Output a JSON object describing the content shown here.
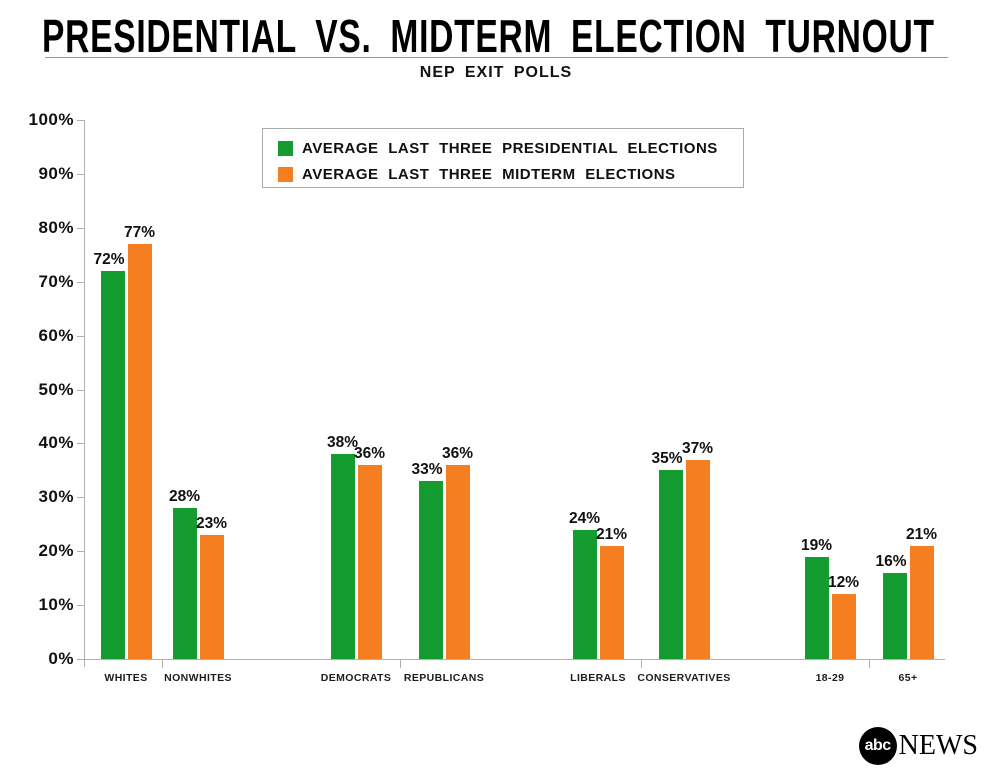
{
  "header": {
    "title": "PRESIDENTIAL VS. MIDTERM ELECTION TURNOUT",
    "subtitle": "NEP EXIT POLLS"
  },
  "chart_data": {
    "type": "bar",
    "title": "PRESIDENTIAL VS. MIDTERM ELECTION TURNOUT",
    "subtitle": "NEP EXIT POLLS",
    "categories": [
      "WHITES",
      "NONWHITES",
      "DEMOCRATS",
      "REPUBLICANS",
      "LIBERALS",
      "CONSERVATIVES",
      "18-29",
      "65+"
    ],
    "series": [
      {
        "name": "AVERAGE LAST THREE PRESIDENTIAL ELECTIONS",
        "color": "#149C31",
        "values": [
          72,
          28,
          38,
          33,
          24,
          35,
          19,
          16
        ]
      },
      {
        "name": "AVERAGE LAST THREE MIDTERM ELECTIONS",
        "color": "#F57E20",
        "values": [
          77,
          23,
          36,
          36,
          21,
          37,
          12,
          21
        ]
      }
    ],
    "ylim": [
      0,
      100
    ],
    "ytick_step": 10,
    "ytick_suffix": "%",
    "value_suffix": "%",
    "grid": false,
    "legend_position": "top-center",
    "category_pairs": [
      [
        "WHITES",
        "NONWHITES"
      ],
      [
        "DEMOCRATS",
        "REPUBLICANS"
      ],
      [
        "LIBERALS",
        "CONSERVATIVES"
      ],
      [
        "18-29",
        "65+"
      ]
    ]
  },
  "colors": {
    "presidential_green": "#149C31",
    "midterm_orange": "#F57E20",
    "axis_gray": "#b0b0b0",
    "divider_gray": "#999999",
    "text_black": "#111111"
  },
  "footer": {
    "logo_abc": "abc",
    "logo_news": "NEWS"
  }
}
